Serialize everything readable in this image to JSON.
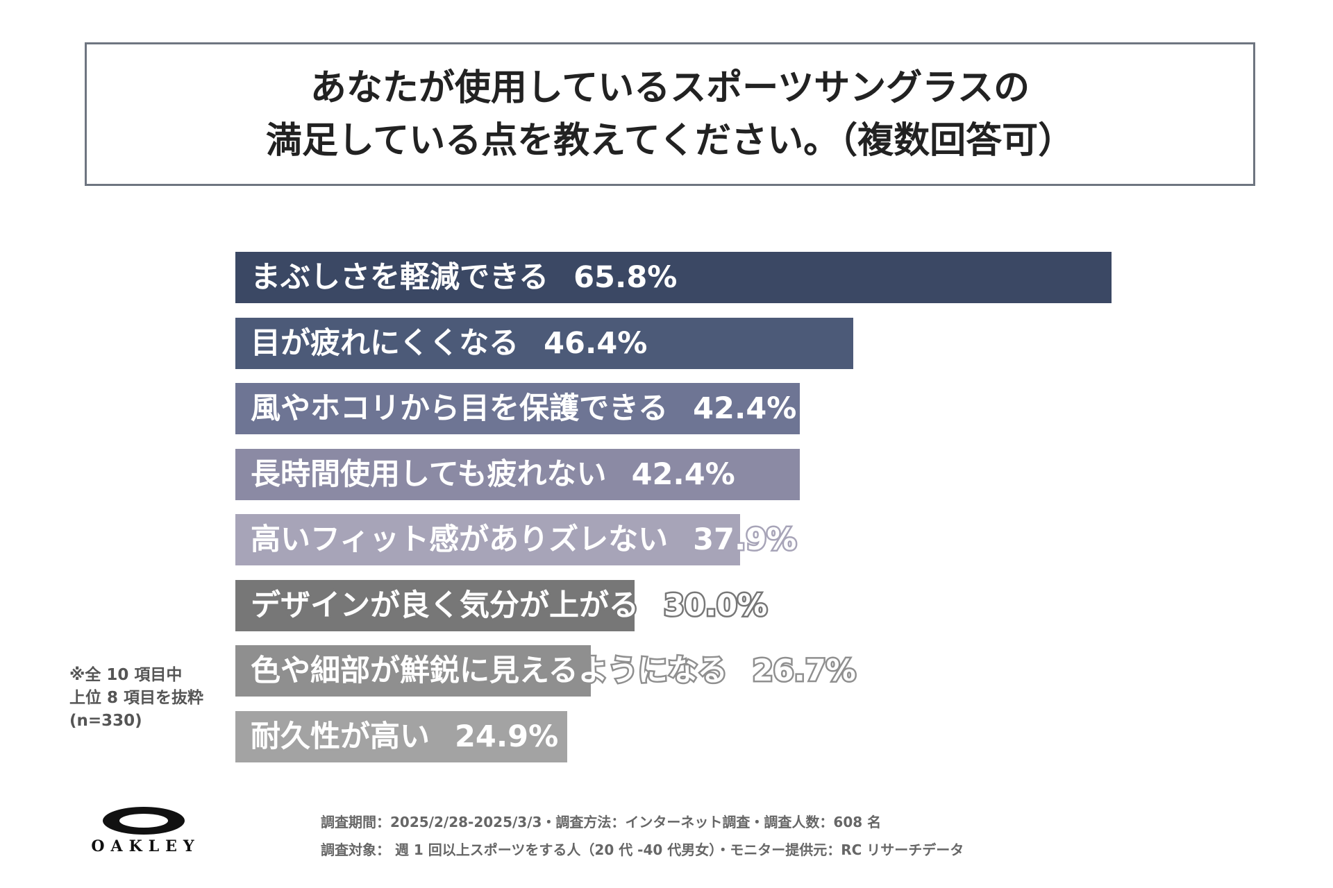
{
  "title": {
    "line1": "あなたが使用しているスポーツサングラスの",
    "line2": "満足している点を教えてください。（複数回答可）"
  },
  "chart_data": {
    "type": "bar",
    "orientation": "horizontal",
    "categories": [
      "まぶしさを軽減できる",
      "目が疲れにくくなる",
      "風やホコリから目を保護できる",
      "長時間使用しても疲れない",
      "高いフィット感がありズレない",
      "デザインが良く気分が上がる",
      "色や細部が鮮鋭に見えるようになる",
      "耐久性が高い"
    ],
    "values": [
      65.8,
      46.4,
      42.4,
      42.4,
      37.9,
      30.0,
      26.7,
      24.9
    ],
    "value_labels": [
      "65.8%",
      "46.4%",
      "42.4%",
      "42.4%",
      "37.9%",
      "30.0%",
      "26.7%",
      "24.9%"
    ],
    "bar_colors": [
      "#3b4864",
      "#4c5a78",
      "#6e7594",
      "#8b8aa4",
      "#a7a4b8",
      "#777777",
      "#8f8f8f",
      "#a3a3a3"
    ],
    "xlim": [
      0,
      65.8
    ],
    "title": "",
    "xlabel": "",
    "ylabel": "",
    "grid": false,
    "legend": "none"
  },
  "note": {
    "line1": "※全 10 項目中",
    "line2": "上位 8 項目を抜粋",
    "line3": "(n=330)"
  },
  "footer": {
    "line1": "調査期間：2025/2/28-2025/3/3・調査方法：インターネット調査・調査人数：608 名",
    "line2": "調査対象： 週 1 回以上スポーツをする人（20 代 -40 代男女）・モニター提供元：RC リサーチデータ"
  },
  "logo": {
    "text": "OAKLEY"
  }
}
